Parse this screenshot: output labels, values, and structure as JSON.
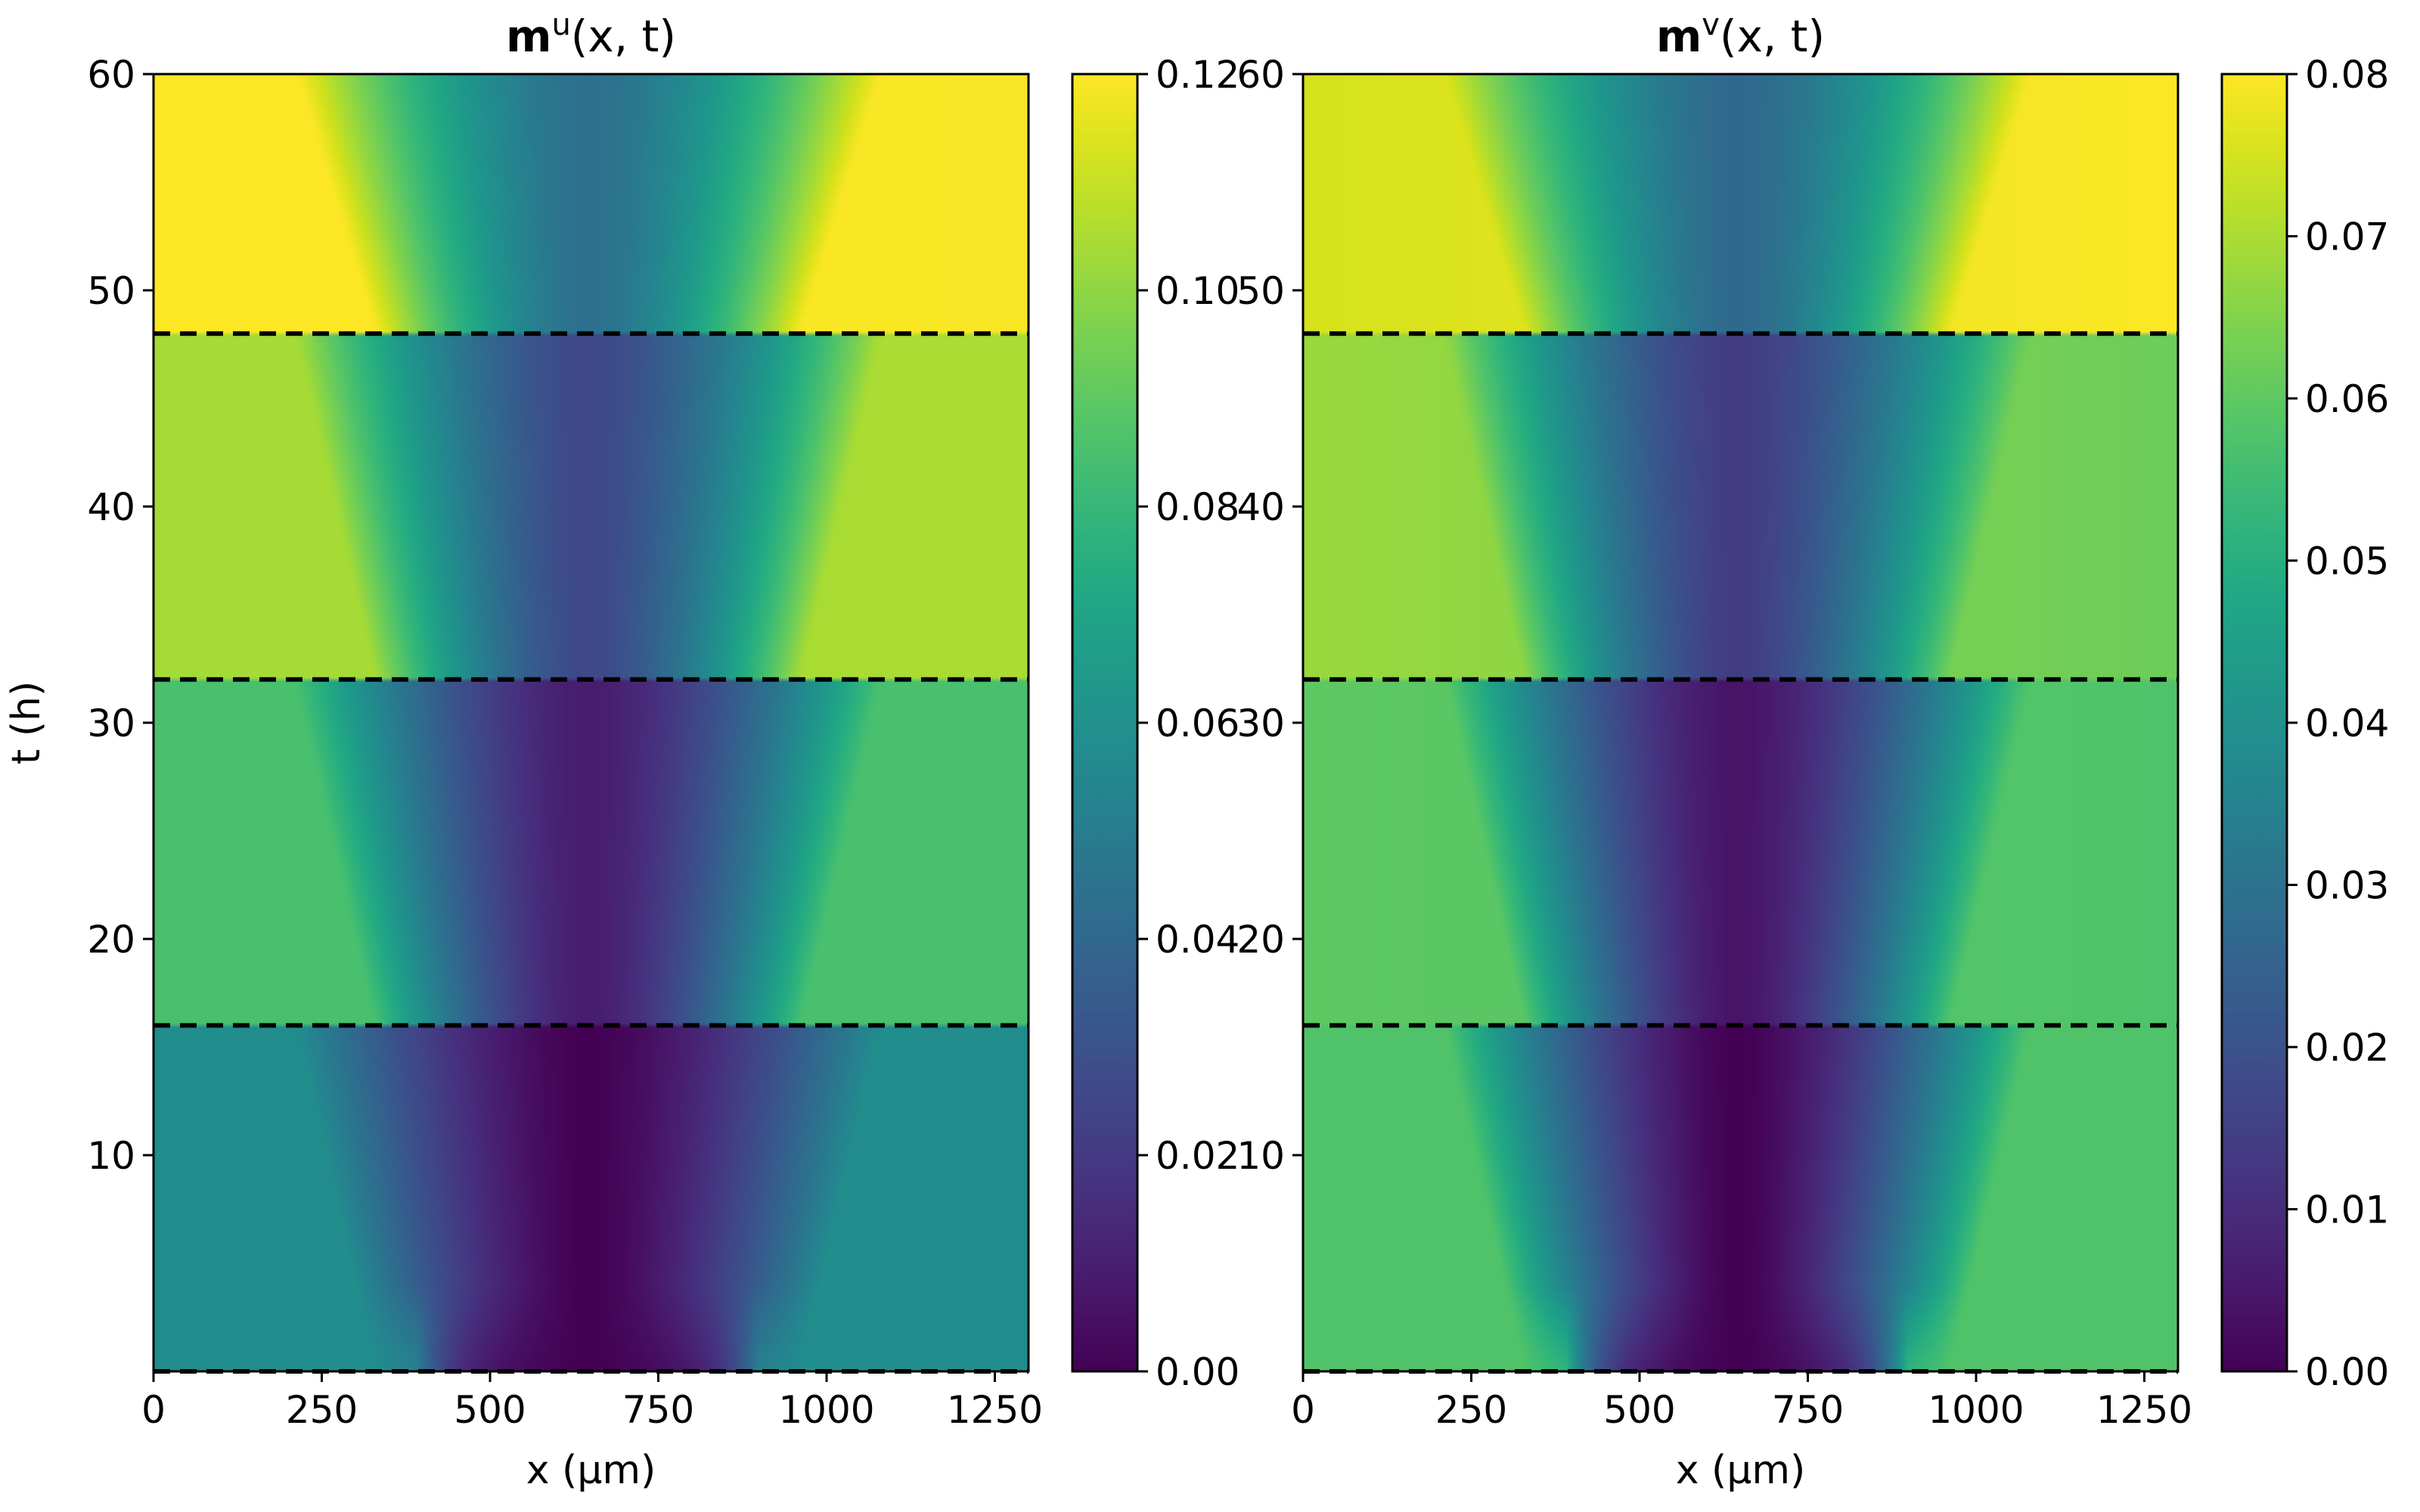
{
  "chart_data": [
    {
      "type": "heatmap",
      "title": {
        "bold": "m",
        "sup": "u",
        "rest": "(x, t)"
      },
      "xlabel": "x (μm)",
      "ylabel": "t (h)",
      "xlim": [
        0,
        1300
      ],
      "ylim": [
        0,
        60
      ],
      "xticks": [
        "0",
        "250",
        "500",
        "750",
        "1000",
        "1250"
      ],
      "yticks": [
        "10",
        "20",
        "30",
        "40",
        "50",
        "60"
      ],
      "colormap": "viridis",
      "colorbar": {
        "min": 0.0,
        "max": 0.12,
        "ticks": [
          "0.00",
          "0.02",
          "0.04",
          "0.06",
          "0.08",
          "0.10",
          "0.12"
        ]
      },
      "dashed_lines_t": [
        0,
        16,
        32,
        48
      ],
      "segments": [
        {
          "t": [
            0,
            16
          ],
          "left_edge": 0.058,
          "right_edge": 0.058,
          "center_min": 0.0
        },
        {
          "t": [
            16,
            32
          ],
          "left_edge": 0.085,
          "right_edge": 0.085,
          "center_min": 0.009
        },
        {
          "t": [
            32,
            48
          ],
          "left_edge": 0.104,
          "right_edge": 0.105,
          "center_min": 0.026
        },
        {
          "t": [
            48,
            60
          ],
          "left_edge": 0.121,
          "right_edge": 0.119,
          "center_min": 0.044
        }
      ],
      "source_region_x": [
        400,
        890
      ]
    },
    {
      "type": "heatmap",
      "title": {
        "bold": "m",
        "sup": "v",
        "rest": "(x, t)"
      },
      "xlabel": "x (μm)",
      "ylabel": "",
      "xlim": [
        0,
        1300
      ],
      "ylim": [
        0,
        60
      ],
      "xticks": [
        "0",
        "250",
        "500",
        "750",
        "1000",
        "1250"
      ],
      "yticks": [
        "10",
        "20",
        "30",
        "40",
        "50",
        "60"
      ],
      "colormap": "viridis",
      "colorbar": {
        "min": 0.0,
        "max": 0.08,
        "ticks": [
          "0.00",
          "0.01",
          "0.02",
          "0.03",
          "0.04",
          "0.05",
          "0.06",
          "0.07",
          "0.08"
        ]
      },
      "dashed_lines_t": [
        0,
        16,
        32,
        48
      ],
      "segments": [
        {
          "t": [
            0,
            16
          ],
          "left_edge": 0.058,
          "right_edge": 0.058,
          "center_min": 0.0
        },
        {
          "t": [
            16,
            32
          ],
          "left_edge": 0.06,
          "right_edge": 0.058,
          "center_min": 0.004
        },
        {
          "t": [
            32,
            48
          ],
          "left_edge": 0.068,
          "right_edge": 0.062,
          "center_min": 0.014
        },
        {
          "t": [
            48,
            60
          ],
          "left_edge": 0.075,
          "right_edge": 0.08,
          "center_min": 0.027
        }
      ],
      "source_region_x": [
        400,
        890
      ]
    }
  ]
}
